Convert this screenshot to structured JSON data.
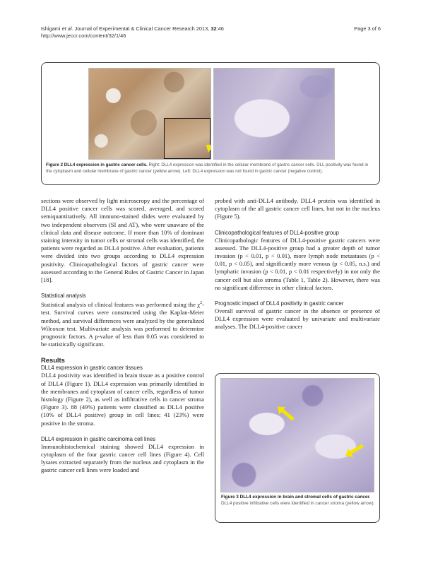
{
  "header": {
    "citation_authors": "Ishigami ",
    "citation_etal": "et al.",
    "citation_journal": " Journal of Experimental & Clinical Cancer Research",
    "citation_year": " 2013, ",
    "citation_volume": "32",
    "citation_page": ":46",
    "url": "http://www.jeccr.com/content/32/1/46",
    "page": "Page 3 of 6"
  },
  "figure2": {
    "label": "Figure 2 DLL4 expression in gastric cancer cells.",
    "caption": " Right: DLL4 expression was identified in the cellular membrane of gastric cancer cells. DLL positivity was found in the cytoplasm and cellular membrane of gastric cancer (yellow arrow). Left: DLL4 expression was not found in gastric cancer (negative control).",
    "arrow_color": "#f5e400"
  },
  "left_column": {
    "p1": "sections were observed by light microscropy and the percentage of DLL4 positive cancer cells was scored, averaged, and scored semiquantitatively. All immuno-stained slides were evaluated by two independent observers (SI and AT), who were unaware of the clinical data and disease outcome. If more than 10% of dominant staining intensity in tumor cells or stromal cells was identified, the patients were regarded as DLL4 positive. After evaluation, patients were divided into two groups according to DLL4 expression positivity. Clinicopathological factors of gastric cancer were assessed according to the General Rules of Gastric Cancer in Japan [18].",
    "stat_heading": "Statistical analysis",
    "stat_p_before": "Statistical analysis of clinical features was performed using the χ",
    "stat_sup": "2",
    "stat_p_after": "-test. Survival curves were constructed using the Kaplan-Meier method, and survival differences were analyzed by the generalized Wilcoxon test. Multivariate analysis was performed to determine prognostic factors. A p-value of less than 0.05 was considered to be statistically significant.",
    "results_heading": "Results",
    "tissue_heading": "DLL4 expression in gastric cancer tissues",
    "tissue_p": "DLL4 positivity was identified in brain tissue as a positive control of DLL4 (Figure 1). DLL4 expression was primarily identified in the membranes and cytoplasm of cancer cells, regardless of tumor histology (Figure 2), as well as infiltrative cells in cancer stroma (Figure 3). 88 (49%) patients were classified as DLL4 positive (10% of DLL4 positive) group in cell lines; 41 (23%) were positive in the stroma.",
    "cellline_heading": "DLL4 expression in gastric carcinoma cell lines",
    "cellline_p": "Immunohistochemical staining showed DLL4 expression in cytoplasm of the four gastric cancer cell lines (Figure 4). Cell lysates extracted separately from the nucleus and cytoplasm in the gastric cancer cell lines were loaded and"
  },
  "right_column": {
    "p1": "probed with anti-DLL4 antibody. DLL4 protein was identified in cytoplasm of the all gastric cancer cell lines, but not in the nucleus (Figure 5).",
    "clin_heading": "Clinicopathological features of DLL4-positive group",
    "clin_p": "Clinicopathologic features of DLL4-positive gastric cancers were assessed. The DLL4-positive group had a greater depth of tumor invasion (p < 0.01, p < 0.01), more lymph node metastases (p < 0.01, p < 0.05), and significantly more venous (p < 0.05, n.s.) and lymphatic invasion (p < 0.01, p < 0.01 respectively) in not only the cancer cell but also stroma (Table 1, Table 2). However, there was no significant difference in other clinical factors.",
    "prog_heading": "Prognostic impact of DLL4 positivity in gastric cancer",
    "prog_p": "Overall survival of gastric cancer in the absence or presence of DLL4 expression were evaluated by univariate and multivariate analyses. The DLL4-positive cancer"
  },
  "figure3": {
    "label": "Figure 3 DLL4 expression in brain and stromal cells of gastric cancer.",
    "caption": " DLL4 positive infiltrative cells were identified in cancer stroma (yellow arrow).",
    "arrow_color": "#f5e400"
  }
}
